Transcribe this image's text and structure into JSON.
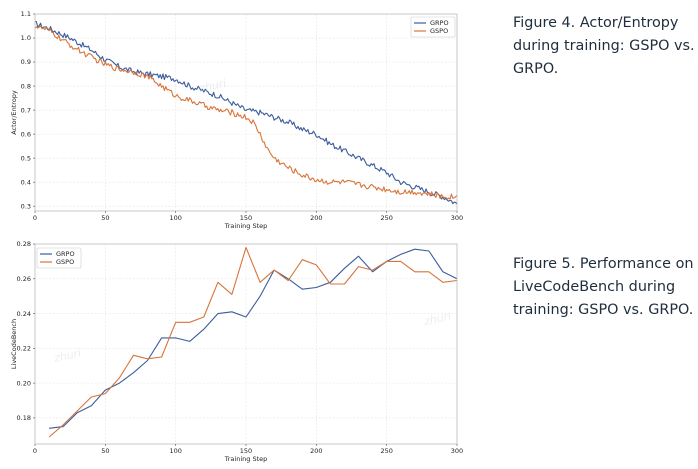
{
  "captions": {
    "figure4": "Figure 4. Actor/Entropy during training: GSPO vs. GRPO.",
    "figure5": "Figure 5. Performance on LiveCodeBench during training: GSPO vs. GRPO."
  },
  "watermark": "zhuri",
  "colors": {
    "GRPO": "#3b5d9c",
    "GSPO": "#d8743a"
  },
  "chart_data": [
    {
      "type": "line",
      "title": "",
      "xlabel": "Training Step",
      "ylabel": "Actor/Entropy",
      "xlim": [
        0,
        300
      ],
      "ylim": [
        0.28,
        1.1
      ],
      "xticks": [
        0,
        50,
        100,
        150,
        200,
        250,
        300
      ],
      "yticks": [
        0.3,
        0.4,
        0.5,
        0.6,
        0.7,
        0.8,
        0.9,
        1.0,
        1.1
      ],
      "ytick_labels": [
        "0.3",
        "0.4",
        "0.5",
        "0.6",
        "0.7",
        "0.8",
        "0.9",
        "1.0",
        "1.1"
      ],
      "legend": "top-right",
      "grid": true,
      "noise": 0.012,
      "series": [
        {
          "name": "GRPO",
          "keypoints": [
            [
              0,
              1.06
            ],
            [
              10,
              1.04
            ],
            [
              25,
              1.0
            ],
            [
              40,
              0.95
            ],
            [
              50,
              0.91
            ],
            [
              60,
              0.88
            ],
            [
              70,
              0.86
            ],
            [
              80,
              0.85
            ],
            [
              90,
              0.84
            ],
            [
              100,
              0.83
            ],
            [
              110,
              0.8
            ],
            [
              120,
              0.78
            ],
            [
              130,
              0.76
            ],
            [
              140,
              0.73
            ],
            [
              150,
              0.7
            ],
            [
              160,
              0.69
            ],
            [
              170,
              0.67
            ],
            [
              180,
              0.65
            ],
            [
              190,
              0.62
            ],
            [
              200,
              0.6
            ],
            [
              210,
              0.56
            ],
            [
              220,
              0.53
            ],
            [
              230,
              0.5
            ],
            [
              240,
              0.47
            ],
            [
              250,
              0.44
            ],
            [
              260,
              0.4
            ],
            [
              270,
              0.38
            ],
            [
              280,
              0.36
            ],
            [
              290,
              0.34
            ],
            [
              300,
              0.31
            ]
          ]
        },
        {
          "name": "GSPO",
          "keypoints": [
            [
              0,
              1.05
            ],
            [
              10,
              1.03
            ],
            [
              25,
              0.97
            ],
            [
              40,
              0.92
            ],
            [
              50,
              0.89
            ],
            [
              60,
              0.87
            ],
            [
              70,
              0.86
            ],
            [
              80,
              0.84
            ],
            [
              90,
              0.8
            ],
            [
              100,
              0.76
            ],
            [
              110,
              0.74
            ],
            [
              120,
              0.72
            ],
            [
              130,
              0.7
            ],
            [
              140,
              0.69
            ],
            [
              150,
              0.67
            ],
            [
              155,
              0.65
            ],
            [
              160,
              0.6
            ],
            [
              165,
              0.54
            ],
            [
              170,
              0.5
            ],
            [
              180,
              0.46
            ],
            [
              190,
              0.43
            ],
            [
              200,
              0.41
            ],
            [
              210,
              0.4
            ],
            [
              220,
              0.4
            ],
            [
              230,
              0.39
            ],
            [
              240,
              0.38
            ],
            [
              250,
              0.37
            ],
            [
              260,
              0.36
            ],
            [
              270,
              0.36
            ],
            [
              280,
              0.35
            ],
            [
              290,
              0.34
            ],
            [
              300,
              0.34
            ]
          ]
        }
      ]
    },
    {
      "type": "line",
      "title": "",
      "xlabel": "Training Step",
      "ylabel": "LiveCodeBench",
      "xlim": [
        0,
        300
      ],
      "ylim": [
        0.165,
        0.28
      ],
      "xticks": [
        0,
        50,
        100,
        150,
        200,
        250,
        300
      ],
      "yticks": [
        0.18,
        0.2,
        0.22,
        0.24,
        0.26,
        0.28
      ],
      "ytick_labels": [
        "0.18",
        "0.20",
        "0.22",
        "0.24",
        "0.26",
        "0.28"
      ],
      "legend": "top-left",
      "grid": true,
      "noise": 0,
      "series": [
        {
          "name": "GRPO",
          "x": [
            10,
            20,
            30,
            40,
            50,
            60,
            70,
            80,
            90,
            100,
            110,
            120,
            130,
            140,
            150,
            160,
            170,
            180,
            190,
            200,
            210,
            220,
            230,
            240,
            250,
            260,
            270,
            280,
            290,
            300
          ],
          "y": [
            0.174,
            0.175,
            0.183,
            0.187,
            0.196,
            0.2,
            0.206,
            0.213,
            0.226,
            0.226,
            0.224,
            0.231,
            0.24,
            0.241,
            0.238,
            0.25,
            0.265,
            0.26,
            0.254,
            0.255,
            0.258,
            0.266,
            0.273,
            0.264,
            0.27,
            0.274,
            0.277,
            0.276,
            0.264,
            0.26
          ]
        },
        {
          "name": "GSPO",
          "x": [
            10,
            20,
            30,
            40,
            50,
            60,
            70,
            80,
            90,
            100,
            110,
            120,
            130,
            140,
            150,
            160,
            170,
            180,
            190,
            200,
            210,
            220,
            230,
            240,
            250,
            260,
            270,
            280,
            290,
            300
          ],
          "y": [
            0.169,
            0.176,
            0.184,
            0.192,
            0.194,
            0.203,
            0.216,
            0.214,
            0.215,
            0.235,
            0.235,
            0.238,
            0.258,
            0.251,
            0.278,
            0.258,
            0.265,
            0.259,
            0.271,
            0.268,
            0.257,
            0.257,
            0.267,
            0.265,
            0.27,
            0.27,
            0.264,
            0.264,
            0.258,
            0.259
          ]
        }
      ]
    }
  ]
}
